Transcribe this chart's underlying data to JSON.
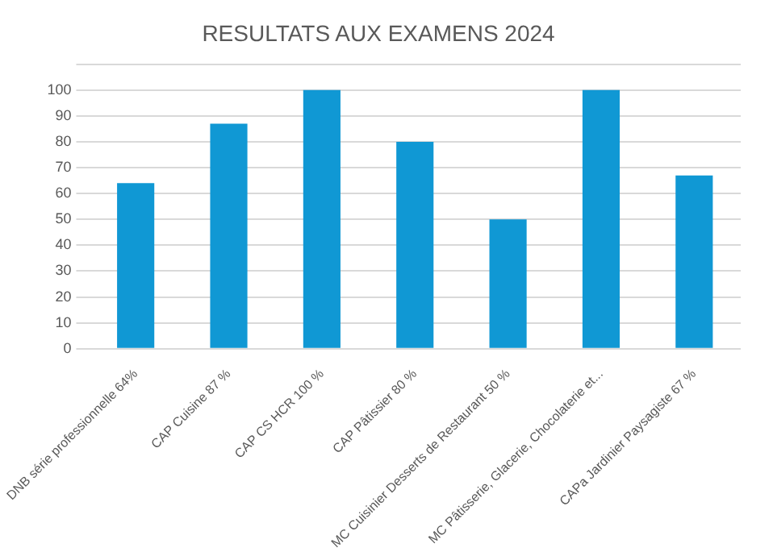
{
  "chart_data": {
    "type": "bar",
    "title": "RESULTATS AUX EXAMENS 2024",
    "categories": [
      "DNB série professionnelle 64%",
      "CAP Cuisine 87 %",
      "CAP CS HCR 100 %",
      "CAP Pâtissier 80 %",
      "MC Cuisinier Desserts de Restaurant 50 %",
      "MC Pâtisserie, Glacerie, Chocolaterie et...",
      "CAPa Jardinier Paysagiste 67 %"
    ],
    "values": [
      64,
      87,
      100,
      80,
      50,
      100,
      67
    ],
    "color": "#1098d4",
    "ylim": [
      0,
      110
    ],
    "yticks": [
      0,
      10,
      20,
      30,
      40,
      50,
      60,
      70,
      80,
      90,
      100,
      {
        "value": 110,
        "label": null
      }
    ],
    "grid": "y",
    "legend": false
  }
}
